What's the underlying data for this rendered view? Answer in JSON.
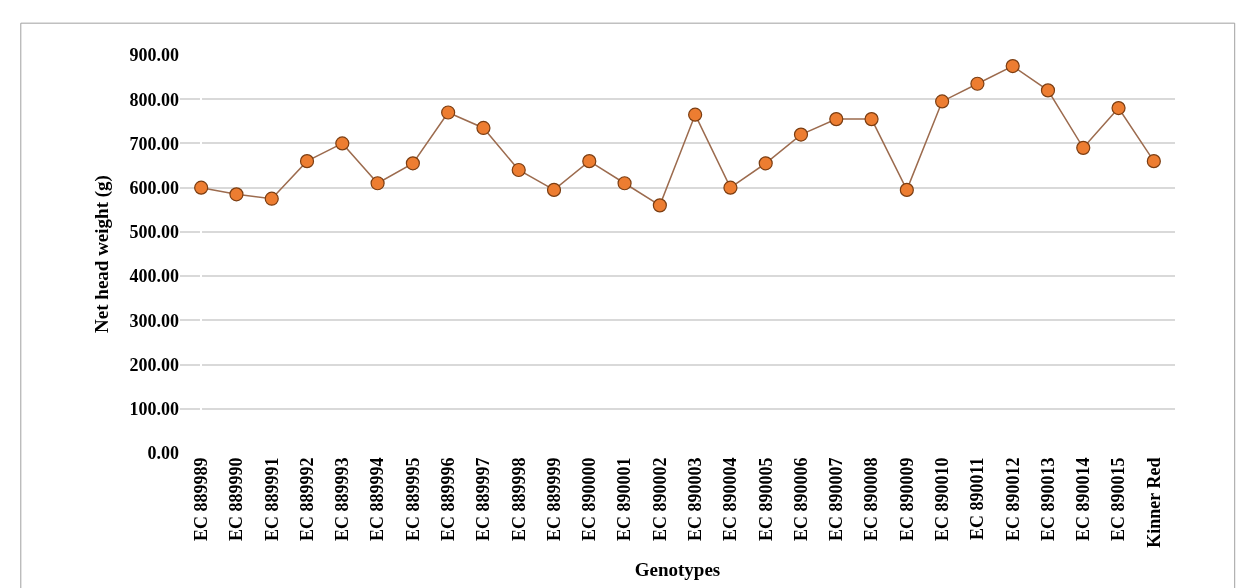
{
  "chart_data": {
    "type": "line",
    "xlabel": "Genotypes",
    "ylabel": "Net head weight (g)",
    "categories": [
      "EC 889989",
      "EC 889990",
      "EC 889991",
      "EC 889992",
      "EC 889993",
      "EC 889994",
      "EC 889995",
      "EC 889996",
      "EC 889997",
      "EC 889998",
      "EC 889999",
      "EC 890000",
      "EC 890001",
      "EC 890002",
      "EC 890003",
      "EC 890004",
      "EC 890005",
      "EC 890006",
      "EC 890007",
      "EC 890008",
      "EC 890009",
      "EC 890010",
      "EC 890011",
      "EC 890012",
      "EC 890013",
      "EC 890014",
      "EC 890015",
      "Kinner Red"
    ],
    "series": [
      {
        "color": "#ed7d31",
        "values": [
          600,
          585,
          575,
          660,
          700,
          610,
          655,
          770,
          735,
          640,
          595,
          660,
          610,
          560,
          765,
          600,
          655,
          720,
          755,
          755,
          595,
          795,
          835,
          875,
          820,
          690,
          780,
          660
        ]
      }
    ],
    "ylim": [
      0,
      900
    ],
    "yticks": [
      {
        "value": 0,
        "label": "0.00"
      },
      {
        "value": 100,
        "label": "100.00"
      },
      {
        "value": 200,
        "label": "200.00"
      },
      {
        "value": 300,
        "label": "300.00"
      },
      {
        "value": 400,
        "label": "400.00"
      },
      {
        "value": 500,
        "label": "500.00"
      },
      {
        "value": 600,
        "label": "600.00"
      },
      {
        "value": 700,
        "label": "700.00"
      },
      {
        "value": 800,
        "label": "800.00"
      },
      {
        "value": 900,
        "label": "900.00"
      }
    ],
    "grid": "y",
    "marker": "circle",
    "line_style": "solid"
  }
}
